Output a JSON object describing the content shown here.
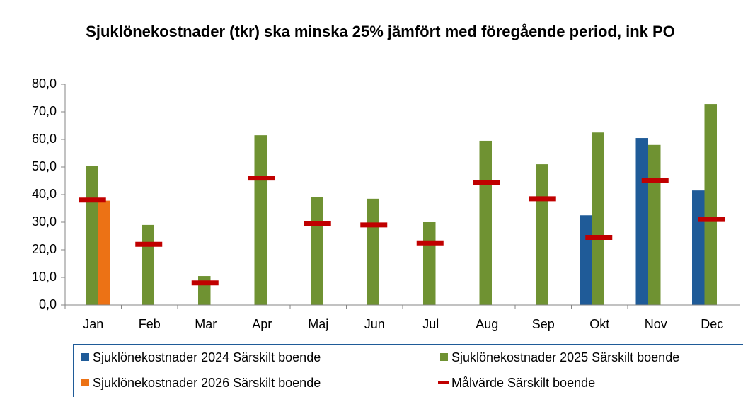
{
  "chart_data": {
    "type": "bar",
    "title": "Sjuklönekostnader (tkr) ska minska 25% jämfört med föregående period, ink PO",
    "categories": [
      "Jan",
      "Feb",
      "Mar",
      "Apr",
      "Maj",
      "Jun",
      "Jul",
      "Aug",
      "Sep",
      "Okt",
      "Nov",
      "Dec"
    ],
    "series": [
      {
        "name": "Sjuklönekostnader 2024 Särskilt boende",
        "color": "#1f5b98",
        "kind": "bar",
        "values": [
          null,
          null,
          null,
          null,
          null,
          null,
          null,
          null,
          null,
          32.5,
          60.5,
          41.5
        ]
      },
      {
        "name": "Sjuklönekostnader 2025 Särskilt boende",
        "color": "#6f9232",
        "kind": "bar",
        "values": [
          50.5,
          29,
          10.5,
          61.5,
          39,
          38.5,
          30,
          59.5,
          51,
          62.5,
          58,
          72.8
        ]
      },
      {
        "name": "Sjuklönekostnader 2026 Särskilt boende",
        "color": "#ec7215",
        "kind": "bar",
        "values": [
          37.8,
          null,
          null,
          null,
          null,
          null,
          null,
          null,
          null,
          null,
          null,
          null
        ]
      },
      {
        "name": "Målvärde Särskilt boende",
        "color": "#c00000",
        "kind": "marker",
        "values": [
          38,
          22,
          8,
          46,
          29.5,
          29,
          22.5,
          44.5,
          38.5,
          24.5,
          45,
          31
        ]
      }
    ],
    "ylim": [
      0,
      80
    ],
    "yticks": [
      {
        "value": 0,
        "label": "0,0"
      },
      {
        "value": 10,
        "label": "10,0"
      },
      {
        "value": 20,
        "label": "20,0"
      },
      {
        "value": 30,
        "label": "30,0"
      },
      {
        "value": 40,
        "label": "40,0"
      },
      {
        "value": 50,
        "label": "50,0"
      },
      {
        "value": 60,
        "label": "60,0"
      },
      {
        "value": 70,
        "label": "70,0"
      },
      {
        "value": 80,
        "label": "80,0"
      }
    ],
    "grid": false,
    "legend": "bottom"
  }
}
